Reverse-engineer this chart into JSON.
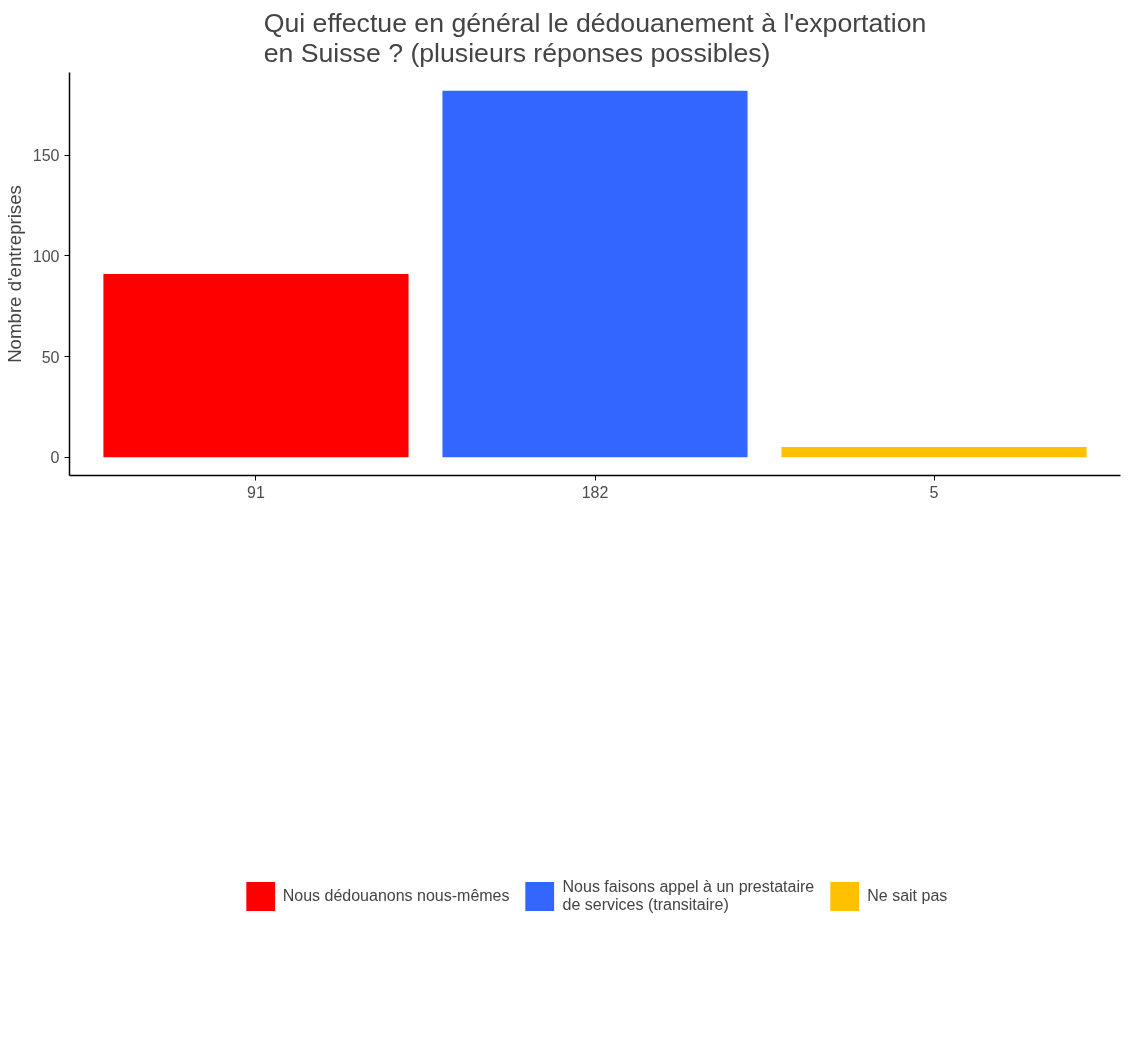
{
  "chart_data": {
    "type": "bar",
    "title": "Qui effectue en général le dédouanement à l'exportation\nen Suisse ? (plusieurs réponses possibles)",
    "ylabel": "Nombre d'entreprises",
    "categories": [
      "91",
      "182",
      "5"
    ],
    "stacked": true,
    "series": [
      {
        "name": "Nous dédouanons nous-mêmes",
        "color": "#ff0000",
        "values": [
          91,
          null,
          null
        ]
      },
      {
        "name": "Nous faisons appel à un prestataire\nde services (transitaire)",
        "color": "#3366ff",
        "values": [
          null,
          182,
          null
        ]
      },
      {
        "name": "Ne sait pas",
        "color": "#ffc000",
        "values": [
          null,
          null,
          5
        ]
      }
    ],
    "ylim": [
      -9.1,
      191.1
    ],
    "yticks": [
      0,
      50,
      100,
      150
    ],
    "grid": false,
    "legend": "bottom"
  }
}
